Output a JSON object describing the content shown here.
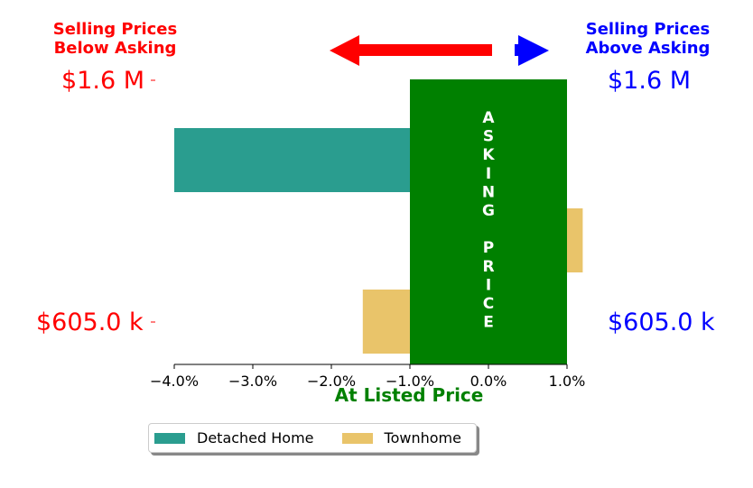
{
  "header": {
    "below_asking": [
      "Selling Prices",
      "Below Asking"
    ],
    "above_asking": [
      "Selling Prices",
      "Above Asking"
    ],
    "below_color": "#ff0000",
    "above_color": "#0000ff"
  },
  "price_labels": {
    "left_top": "$1.6 M",
    "left_bottom": "$605.0 k",
    "right_top": "$1.6 M",
    "right_bottom": "$605.0 k"
  },
  "center_band": {
    "letters": [
      "A",
      "S",
      "K",
      "I",
      "N",
      "G",
      "",
      "P",
      "R",
      "I",
      "C",
      "E"
    ],
    "color": "#008000"
  },
  "arrows": {
    "left_color": "#ff0000",
    "right_color": "#0000ff"
  },
  "chart_data": {
    "type": "bar",
    "orientation": "horizontal",
    "categories": [
      "$1.6 M",
      "$605.0 k"
    ],
    "series": [
      {
        "name": "Detached Home",
        "values": [
          -4.0,
          null
        ],
        "color": "#2a9d8f"
      },
      {
        "name": "Townhome",
        "values": [
          1.2,
          -1.6
        ],
        "color": "#e9c46a"
      }
    ],
    "xlabel": "At Listed Price",
    "xlabel_color": "#008000",
    "xlim": [
      -4.0,
      1.0
    ],
    "xticks": [
      "−4.0%",
      "−3.0%",
      "−2.0%",
      "−1.0%",
      "0.0%",
      "1.0%"
    ],
    "xtick_values": [
      -4.0,
      -3.0,
      -2.0,
      -1.0,
      0.0,
      1.0
    ],
    "asking_band": [
      -1.0,
      1.0
    ],
    "legend": {
      "position": "bottom-center"
    }
  }
}
